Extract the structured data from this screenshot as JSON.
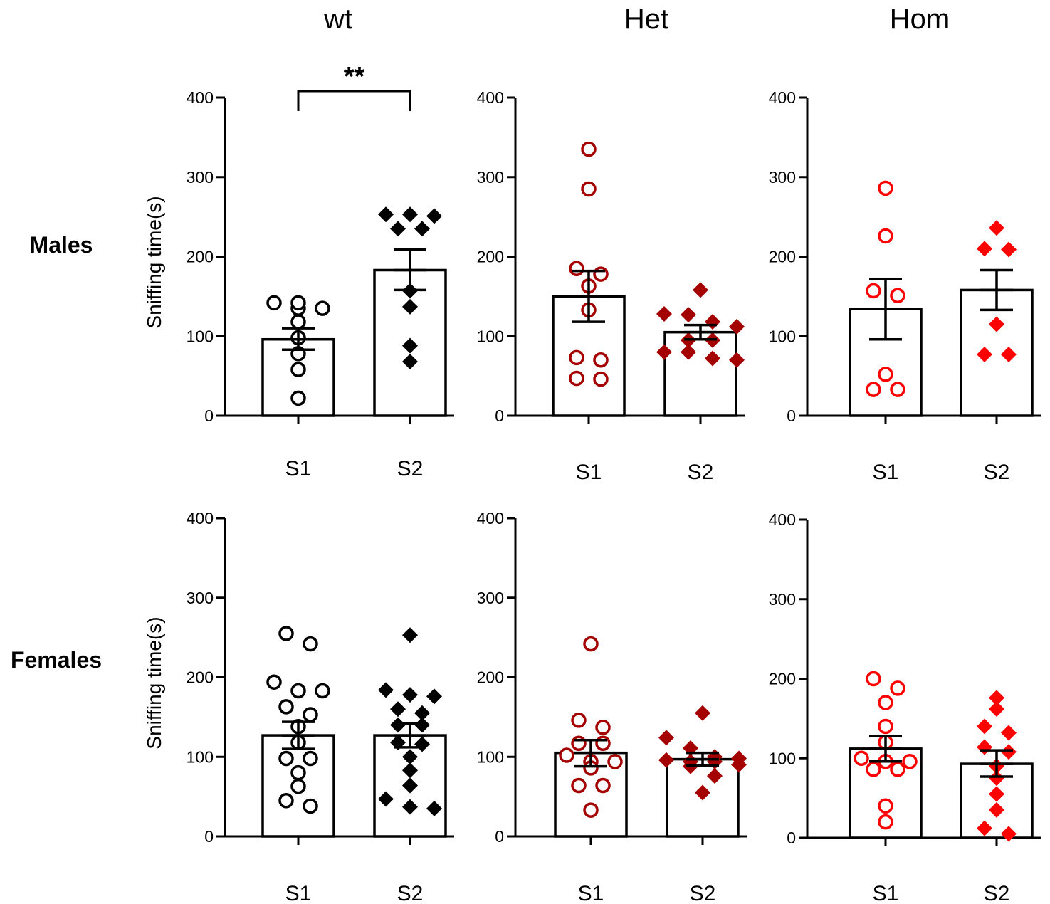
{
  "column_titles": [
    "wt",
    "Het",
    "Hom"
  ],
  "row_labels": [
    "Males",
    "Females"
  ],
  "colors": {
    "wt": "#000000",
    "Het": "#a50000",
    "Hom": "#ff0000"
  },
  "chart_data": [
    {
      "type": "bar",
      "row": "Males",
      "genotype": "wt",
      "categories": [
        "S1",
        "S2"
      ],
      "ylabel": "Sniffing time(s)",
      "ylim": [
        0,
        400
      ],
      "yticks": [
        0,
        100,
        200,
        300,
        400
      ],
      "marker_S1": "open-circle",
      "marker_S2": "filled-diamond",
      "color": "#000000",
      "significance": {
        "label": "**",
        "between": [
          "S1",
          "S2"
        ]
      },
      "series": [
        {
          "category": "S1",
          "mean": 96,
          "sem_low": 83,
          "sem_high": 110,
          "points": [
            135,
            135,
            142,
            142,
            118,
            98,
            78,
            58,
            22
          ]
        },
        {
          "category": "S2",
          "mean": 183,
          "sem_low": 158,
          "sem_high": 209,
          "points": [
            253,
            251,
            253,
            235,
            235,
            157,
            137,
            88,
            68
          ]
        }
      ]
    },
    {
      "type": "bar",
      "row": "Males",
      "genotype": "Het",
      "categories": [
        "S1",
        "S2"
      ],
      "ylabel": "",
      "ylim": [
        0,
        400
      ],
      "yticks": [
        0,
        100,
        200,
        300,
        400
      ],
      "marker_S1": "open-circle",
      "marker_S2": "filled-diamond",
      "color": "#a50000",
      "series": [
        {
          "category": "S1",
          "mean": 150,
          "sem_low": 118,
          "sem_high": 182,
          "points": [
            335,
            285,
            185,
            178,
            163,
            133,
            73,
            70,
            47,
            46
          ]
        },
        {
          "category": "S2",
          "mean": 105,
          "sem_low": 96,
          "sem_high": 114,
          "points": [
            158,
            127,
            128,
            118,
            112,
            95,
            95,
            80,
            80,
            70,
            72
          ]
        }
      ]
    },
    {
      "type": "bar",
      "row": "Males",
      "genotype": "Hom",
      "categories": [
        "S1",
        "S2"
      ],
      "ylabel": "",
      "ylim": [
        0,
        400
      ],
      "yticks": [
        0,
        100,
        200,
        300,
        400
      ],
      "marker_S1": "open-circle",
      "marker_S2": "filled-diamond",
      "color": "#ff0000",
      "series": [
        {
          "category": "S1",
          "mean": 134,
          "sem_low": 96,
          "sem_high": 172,
          "points": [
            286,
            226,
            157,
            151,
            52,
            33,
            33
          ]
        },
        {
          "category": "S2",
          "mean": 158,
          "sem_low": 133,
          "sem_high": 183,
          "points": [
            236,
            209,
            210,
            115,
            77,
            77
          ]
        }
      ]
    },
    {
      "type": "bar",
      "row": "Females",
      "genotype": "wt",
      "categories": [
        "S1",
        "S2"
      ],
      "ylabel": "Sniffing time(s)",
      "ylim": [
        0,
        400
      ],
      "yticks": [
        0,
        100,
        200,
        300,
        400
      ],
      "marker_S1": "open-circle",
      "marker_S2": "filled-diamond",
      "color": "#000000",
      "series": [
        {
          "category": "S1",
          "mean": 127,
          "sem_low": 110,
          "sem_high": 144,
          "points": [
            255,
            242,
            194,
            183,
            183,
            163,
            153,
            138,
            118,
            98,
            98,
            80,
            63,
            45,
            38
          ]
        },
        {
          "category": "S2",
          "mean": 127,
          "sem_low": 112,
          "sem_high": 142,
          "points": [
            253,
            184,
            178,
            176,
            160,
            155,
            140,
            140,
            116,
            118,
            100,
            83,
            64,
            47,
            37,
            35
          ]
        }
      ]
    },
    {
      "type": "bar",
      "row": "Females",
      "genotype": "Het",
      "categories": [
        "S1",
        "S2"
      ],
      "ylabel": "",
      "ylim": [
        0,
        400
      ],
      "yticks": [
        0,
        100,
        200,
        300,
        400
      ],
      "marker_S1": "open-circle",
      "marker_S2": "filled-diamond",
      "color": "#a50000",
      "series": [
        {
          "category": "S1",
          "mean": 105,
          "sem_low": 88,
          "sem_high": 121,
          "points": [
            242,
            146,
            137,
            117,
            117,
            102,
            94,
            94,
            86,
            64,
            64,
            33
          ]
        },
        {
          "category": "S2",
          "mean": 97,
          "sem_low": 89,
          "sem_high": 105,
          "points": [
            155,
            124,
            111,
            100,
            98,
            96,
            94,
            94,
            90,
            88,
            76,
            55
          ]
        }
      ]
    },
    {
      "type": "bar",
      "row": "Females",
      "genotype": "Hom",
      "categories": [
        "S1",
        "S2"
      ],
      "ylabel": "",
      "ylim": [
        0,
        400
      ],
      "yticks": [
        0,
        100,
        200,
        300,
        400
      ],
      "marker_S1": "open-circle",
      "marker_S2": "filled-diamond",
      "color": "#ff0000",
      "series": [
        {
          "category": "S1",
          "mean": 112,
          "sem_low": 96,
          "sem_high": 128,
          "points": [
            200,
            188,
            170,
            140,
            120,
            100,
            96,
            96,
            86,
            86,
            40,
            20
          ]
        },
        {
          "category": "S2",
          "mean": 93,
          "sem_low": 77,
          "sem_high": 110,
          "points": [
            176,
            162,
            140,
            132,
            114,
            108,
            90,
            75,
            55,
            35,
            12,
            5
          ]
        }
      ]
    }
  ]
}
